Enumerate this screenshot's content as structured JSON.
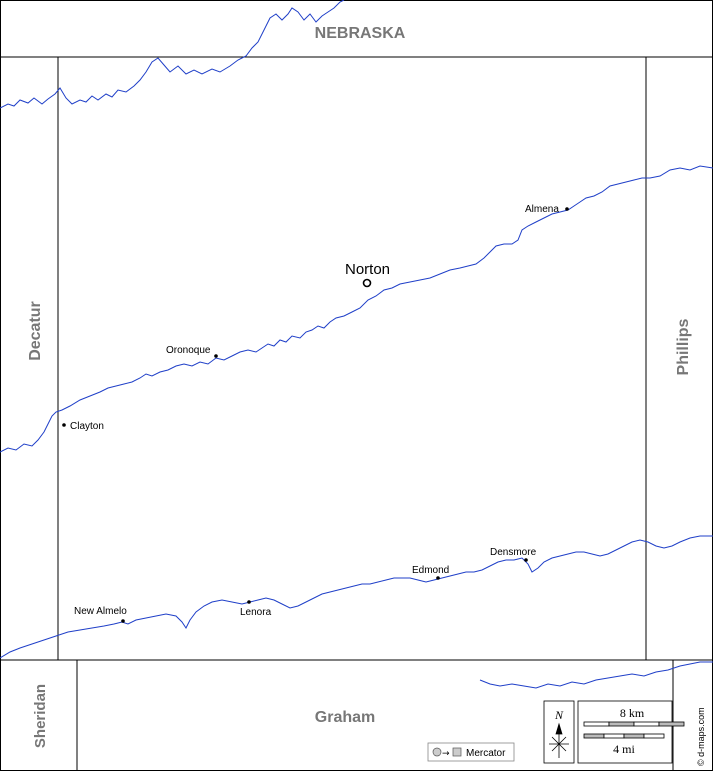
{
  "county_seat": {
    "name": "Norton"
  },
  "towns": [
    {
      "id": "almena",
      "name": "Almena"
    },
    {
      "id": "oronoque",
      "name": "Oronoque"
    },
    {
      "id": "clayton",
      "name": "Clayton"
    },
    {
      "id": "densmore",
      "name": "Densmore"
    },
    {
      "id": "edmond",
      "name": "Edmond"
    },
    {
      "id": "new-almelo",
      "name": "New Almelo"
    },
    {
      "id": "lenora",
      "name": "Lenora"
    }
  ],
  "neighbors": {
    "north": "NEBRASKA",
    "west": "Decatur",
    "east": "Phillips",
    "south": "Graham",
    "southwest": "Sheridan"
  },
  "compass": {
    "label": "N"
  },
  "scale": {
    "km_label": "8 km",
    "mi_label": "4 mi"
  },
  "projection": {
    "label": "Mercator"
  },
  "credit": "© d-maps.com",
  "colors": {
    "river": "#1f3fc8",
    "border": "#000000",
    "neighbor_text": "#777777"
  }
}
